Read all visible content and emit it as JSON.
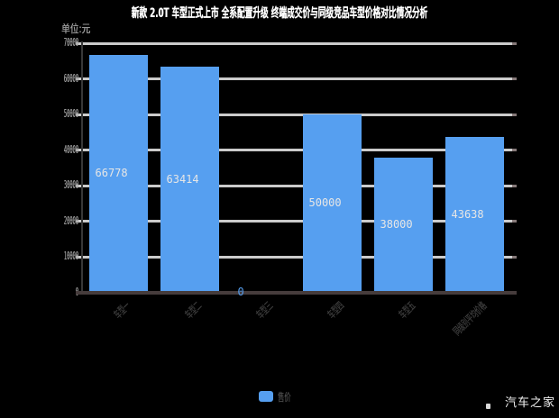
{
  "title": "新款 2.0T 车型正式上市 全系配置升级 终端成交价与同级竞品车型价格对比情况分析",
  "unit_label": "单位:元",
  "watermark": "汽车之家",
  "legend": {
    "label": "售价"
  },
  "colors": {
    "background": "#000000",
    "bar": "#569ff0",
    "grid": "#cbcbcb",
    "grid_cap": "#857878",
    "x_axis": "#463c3c",
    "y_axis_line": "#383838",
    "y_label": "#9a9a9a",
    "x_label": "#3d3d3d",
    "value_label": "#e6e6e6",
    "zero_value_label": "#569ff0",
    "title": "#ffffff",
    "legend_text": "#4c4c4c",
    "watermark": "#ffffff"
  },
  "chart_data": {
    "type": "bar",
    "title": "新款 2.0T 车型正式上市 全系配置升级 终端成交价与同级竞品车型价格对比情况分析",
    "categories": [
      "车型一",
      "车型二",
      "车型三",
      "车型四",
      "车型五",
      "同级别平均价格"
    ],
    "values": [
      66778,
      63414,
      0,
      50000,
      38000,
      43638
    ],
    "ylabel": "单位:元",
    "ylim": [
      0,
      70000
    ],
    "yticks": [
      0,
      10000,
      20000,
      30000,
      40000,
      50000,
      60000,
      70000
    ],
    "grid": true,
    "legend_position": "bottom",
    "legend_entries": [
      "售价"
    ]
  }
}
